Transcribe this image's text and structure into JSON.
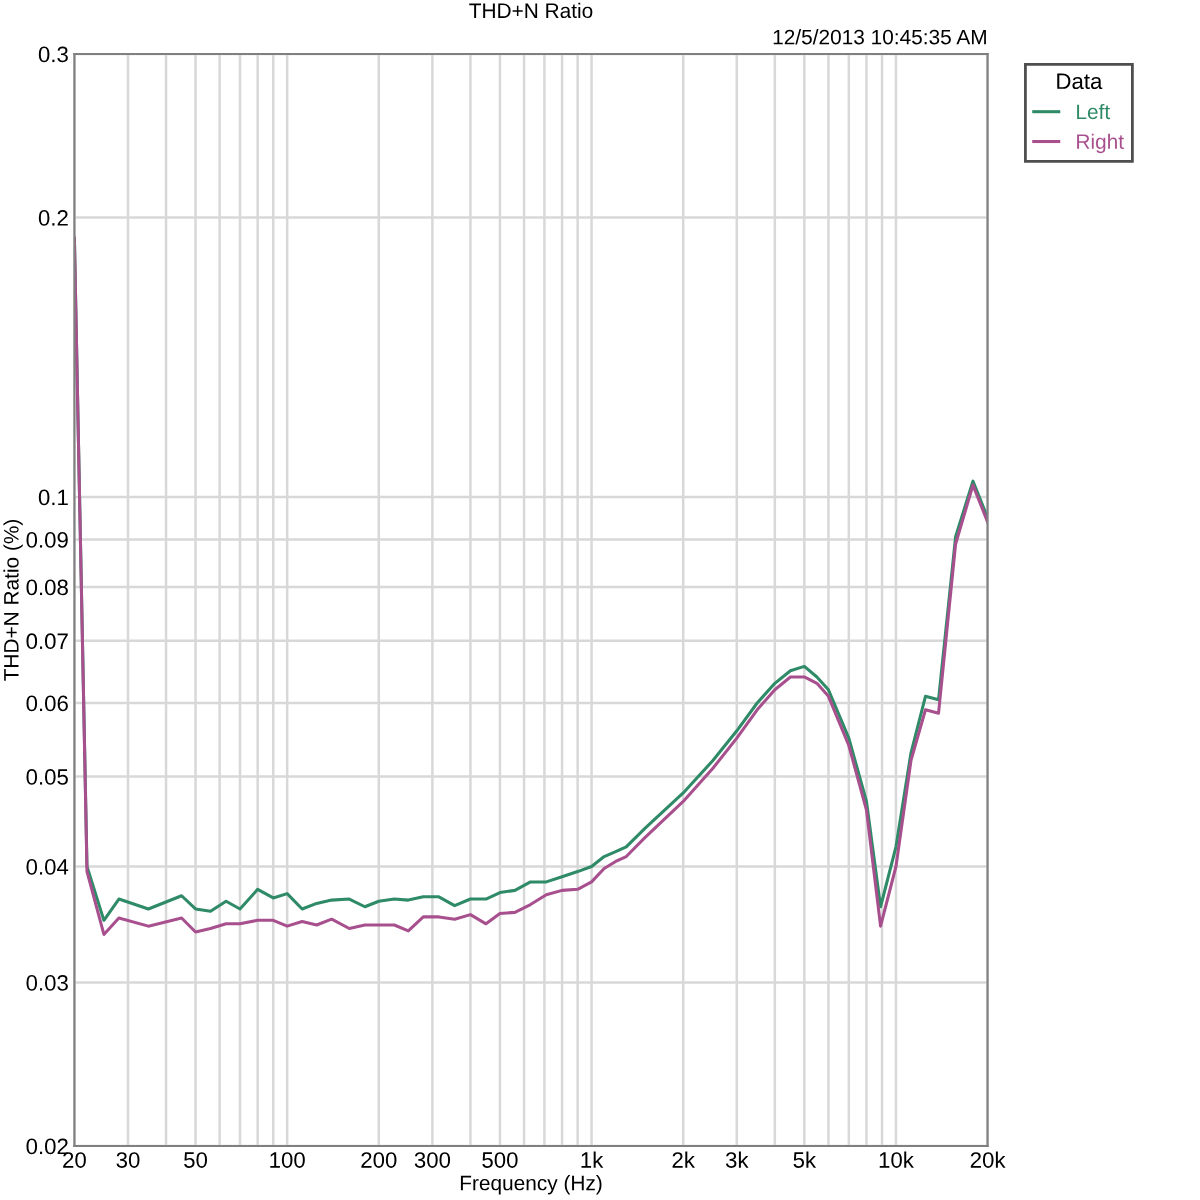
{
  "chart_data": {
    "type": "line",
    "title": "THD+N Ratio",
    "xlabel": "Frequency (Hz)",
    "ylabel": "THD+N Ratio (%)",
    "legend_title": "Data",
    "annotations": [
      "12/5/2013 10:45:35 AM"
    ],
    "log": "xy",
    "grid": true,
    "legend": "top right",
    "marker": "none",
    "line_style": "solid",
    "xlim": [
      20,
      20000
    ],
    "ylim": [
      0.02,
      0.3
    ],
    "xticks": [
      20,
      30,
      {
        "value": 40,
        "label": null
      },
      50,
      {
        "value": 60,
        "label": null
      },
      {
        "value": 70,
        "label": null
      },
      {
        "value": 80,
        "label": null
      },
      {
        "value": 90,
        "label": null
      },
      100,
      200,
      300,
      {
        "value": 400,
        "label": null
      },
      500,
      {
        "value": 600,
        "label": null
      },
      {
        "value": 700,
        "label": null
      },
      {
        "value": 800,
        "label": null
      },
      {
        "value": 900,
        "label": null
      },
      {
        "value": 1000,
        "label": "1k"
      },
      {
        "value": 2000,
        "label": "2k"
      },
      {
        "value": 3000,
        "label": "3k"
      },
      {
        "value": 4000,
        "label": null
      },
      {
        "value": 5000,
        "label": "5k"
      },
      {
        "value": 6000,
        "label": null
      },
      {
        "value": 7000,
        "label": null
      },
      {
        "value": 8000,
        "label": null
      },
      {
        "value": 9000,
        "label": null
      },
      {
        "value": 10000,
        "label": "10k"
      },
      {
        "value": 20000,
        "label": "20k"
      }
    ],
    "yticks": [
      0.02,
      0.03,
      0.04,
      0.05,
      0.06,
      0.07,
      0.08,
      0.09,
      0.1,
      0.2,
      0.3
    ],
    "x": [
      20,
      22,
      25,
      28,
      35,
      45,
      50,
      56,
      63,
      70,
      80,
      90,
      100,
      112,
      125,
      140,
      160,
      180,
      200,
      225,
      250,
      280,
      315,
      355,
      400,
      450,
      500,
      560,
      630,
      710,
      800,
      900,
      1000,
      1100,
      1200,
      1300,
      1500,
      2000,
      2500,
      3000,
      3500,
      4000,
      4500,
      5000,
      5500,
      6000,
      7000,
      8000,
      8900,
      10000,
      11200,
      12500,
      13800,
      15700,
      17900,
      20000
    ],
    "series": [
      {
        "name": "Left",
        "color": "#2f8a68",
        "values": [
          0.19,
          0.04,
          0.035,
          0.0369,
          0.036,
          0.0372,
          0.036,
          0.0358,
          0.0367,
          0.036,
          0.0378,
          0.037,
          0.0374,
          0.036,
          0.0365,
          0.0368,
          0.0369,
          0.0362,
          0.0367,
          0.0369,
          0.0368,
          0.0371,
          0.0371,
          0.0363,
          0.0369,
          0.0369,
          0.0375,
          0.0377,
          0.0385,
          0.0385,
          0.039,
          0.0395,
          0.04,
          0.041,
          0.0415,
          0.042,
          0.044,
          0.048,
          0.052,
          0.056,
          0.06,
          0.063,
          0.065,
          0.0657,
          0.064,
          0.062,
          0.055,
          0.047,
          0.0362,
          0.042,
          0.053,
          0.061,
          0.0605,
          0.0906,
          0.104,
          0.095
        ]
      },
      {
        "name": "Right",
        "color": "#a8508e",
        "values": [
          0.19,
          0.0395,
          0.0338,
          0.0352,
          0.0345,
          0.0352,
          0.034,
          0.0343,
          0.0347,
          0.0347,
          0.035,
          0.035,
          0.0345,
          0.0349,
          0.0346,
          0.0351,
          0.0343,
          0.0346,
          0.0346,
          0.0346,
          0.0341,
          0.0353,
          0.0353,
          0.0351,
          0.0355,
          0.0347,
          0.0356,
          0.0357,
          0.0364,
          0.0373,
          0.0377,
          0.0378,
          0.0385,
          0.0398,
          0.0405,
          0.041,
          0.043,
          0.047,
          0.051,
          0.055,
          0.059,
          0.062,
          0.064,
          0.064,
          0.063,
          0.061,
          0.054,
          0.046,
          0.0345,
          0.04,
          0.052,
          0.059,
          0.0585,
          0.089,
          0.103,
          0.094
        ]
      }
    ]
  }
}
